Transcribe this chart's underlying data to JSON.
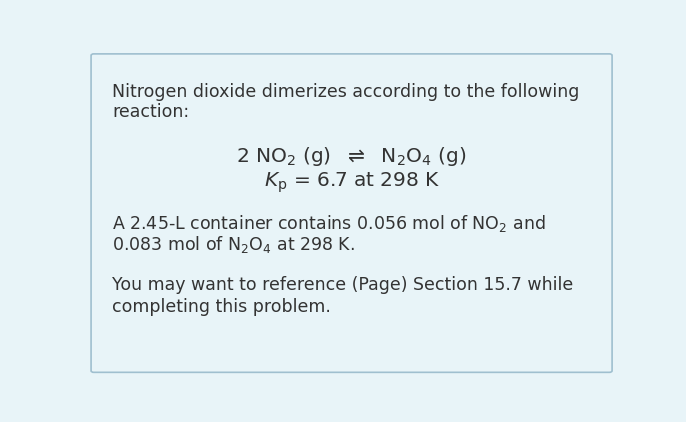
{
  "background_color": "#e8f4f8",
  "border_color": "#9fbfcf",
  "text_color": "#333333",
  "figsize": [
    6.86,
    4.22
  ],
  "dpi": 100,
  "line1": "Nitrogen dioxide dimerizes according to the following",
  "line2": "reaction:",
  "reaction_line": "2 NO$_2$ (g)  $\\rightleftharpoons$  N$_2$O$_4$ (g)",
  "kp_line": "$K_\\mathrm{p}$ = 6.7 at 298 K",
  "para2_line1": "A 2.45-L container contains 0.056 mol of NO$_2$ and",
  "para2_line2": "0.083 mol of N$_2$O$_4$ at 298 K.",
  "para3_line1": "You may want to reference (Page) Section 15.7 while",
  "para3_line2": "completing this problem.",
  "font_size": 12.5,
  "reaction_font_size": 14.5,
  "kp_font_size": 14.5
}
